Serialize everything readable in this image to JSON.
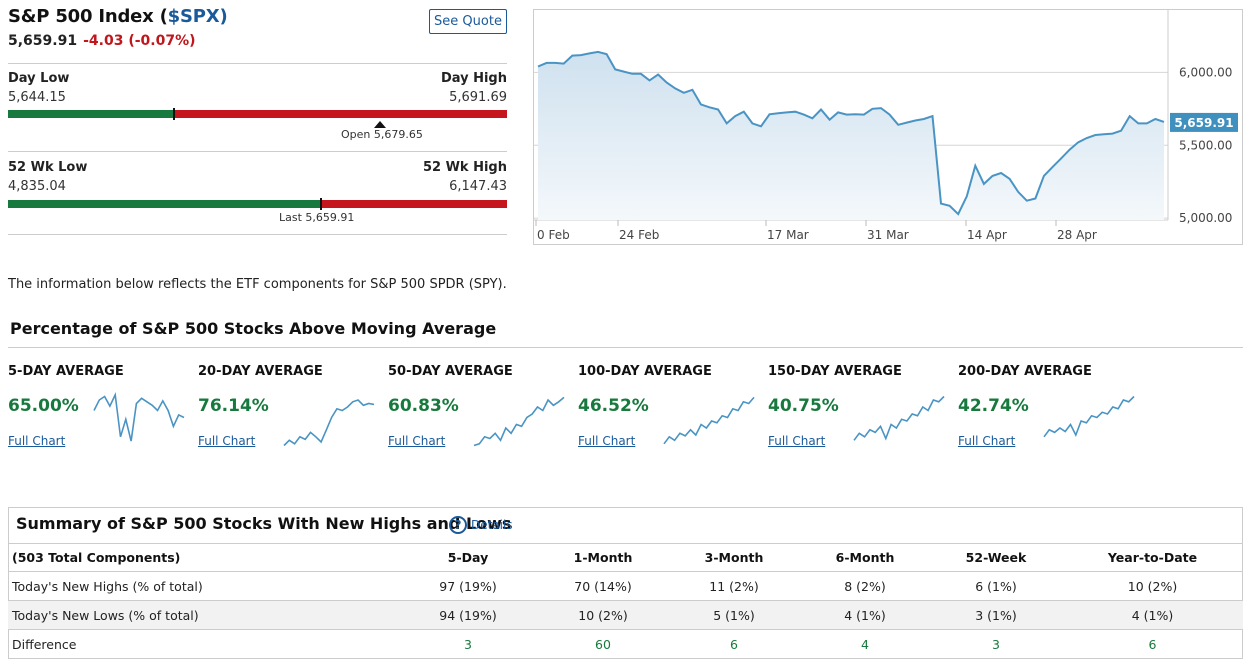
{
  "quote": {
    "name": "S&P 500 Index (",
    "symbol": "$SPX",
    "close_paren": ")",
    "price": "5,659.91",
    "change": "-4.03 (-0.07%)",
    "see_quote": "See Quote"
  },
  "day_range": {
    "low_label": "Day Low",
    "low_value": "5,644.15",
    "high_label": "Day High",
    "high_value": "5,691.69",
    "open_label": "Open 5,679.65",
    "last_fraction": 0.333,
    "open_fraction": 0.746
  },
  "wk52_range": {
    "low_label": "52 Wk Low",
    "low_value": "4,835.04",
    "high_label": "52 Wk High",
    "high_value": "6,147.43",
    "last_label": "Last 5,659.91",
    "last_fraction": 0.628
  },
  "price_chart": {
    "type": "area",
    "x_ticks": [
      "0 Feb",
      "24 Feb",
      "17 Mar",
      "31 Mar",
      "14 Apr",
      "28 Apr"
    ],
    "y_ticks": [
      "6,000.00",
      "5,500.00",
      "5,000.00"
    ],
    "ylim": [
      4960,
      6400
    ],
    "last_label": "5,659.91",
    "values": [
      6040,
      6065,
      6065,
      6060,
      6115,
      6118,
      6130,
      6140,
      6125,
      6020,
      6005,
      5990,
      5990,
      5945,
      5985,
      5930,
      5890,
      5860,
      5880,
      5780,
      5760,
      5745,
      5650,
      5700,
      5730,
      5650,
      5630,
      5712,
      5720,
      5725,
      5730,
      5710,
      5685,
      5745,
      5675,
      5725,
      5710,
      5712,
      5710,
      5750,
      5755,
      5710,
      5640,
      5655,
      5670,
      5680,
      5700,
      5100,
      5085,
      5028,
      5150,
      5360,
      5235,
      5290,
      5310,
      5270,
      5180,
      5120,
      5135,
      5290,
      5350,
      5410,
      5470,
      5520,
      5550,
      5570,
      5575,
      5580,
      5600,
      5700,
      5650,
      5650,
      5680,
      5660
    ]
  },
  "info_text": "The information below reflects the ETF components for S&P 500 SPDR (SPY).",
  "ma_section": {
    "title": "Percentage of S&P 500 Stocks Above Moving Average",
    "full_chart_label": "Full Chart",
    "items": [
      {
        "label": "5-DAY AVERAGE",
        "value": "65.00%",
        "spark": [
          60,
          72,
          76,
          65,
          78,
          30,
          50,
          25,
          68,
          74,
          70,
          66,
          60,
          71,
          60,
          42,
          55,
          52
        ]
      },
      {
        "label": "20-DAY AVERAGE",
        "value": "76.14%",
        "spark": [
          20,
          26,
          22,
          30,
          27,
          35,
          30,
          24,
          38,
          52,
          62,
          60,
          64,
          70,
          72,
          66,
          68,
          67
        ]
      },
      {
        "label": "50-DAY AVERAGE",
        "value": "60.83%",
        "spark": [
          20,
          22,
          30,
          28,
          34,
          26,
          40,
          34,
          44,
          42,
          52,
          56,
          64,
          60,
          72,
          66,
          70,
          75
        ]
      },
      {
        "label": "100-DAY AVERAGE",
        "value": "46.52%",
        "spark": [
          22,
          30,
          26,
          34,
          31,
          38,
          32,
          44,
          40,
          48,
          46,
          54,
          52,
          62,
          60,
          70,
          68,
          75
        ]
      },
      {
        "label": "150-DAY AVERAGE",
        "value": "40.75%",
        "spark": [
          26,
          34,
          30,
          38,
          35,
          42,
          28,
          44,
          40,
          50,
          48,
          56,
          54,
          64,
          60,
          72,
          70,
          76
        ]
      },
      {
        "label": "200-DAY AVERAGE",
        "value": "42.74%",
        "spark": [
          30,
          38,
          35,
          40,
          36,
          44,
          32,
          48,
          46,
          54,
          52,
          58,
          56,
          64,
          62,
          72,
          70,
          76
        ]
      }
    ]
  },
  "summary": {
    "title": "Summary of S&P 500 Stocks With New Highs and Lows",
    "details": "Details",
    "columns": [
      "(503 Total Components)",
      "5-Day",
      "1-Month",
      "3-Month",
      "6-Month",
      "52-Week",
      "Year-to-Date"
    ],
    "rows": [
      [
        "Today's New Highs (% of total)",
        "97 (19%)",
        "70 (14%)",
        "11 (2%)",
        "8 (2%)",
        "6 (1%)",
        "10 (2%)"
      ],
      [
        "Today's New Lows (% of total)",
        "94 (19%)",
        "10 (2%)",
        "5 (1%)",
        "4 (1%)",
        "3 (1%)",
        "4 (1%)"
      ],
      [
        "Difference",
        "3",
        "60",
        "6",
        "4",
        "3",
        "6"
      ]
    ]
  },
  "colors": {
    "green": "#17793d",
    "red": "#c6161d",
    "link": "#1a5a9a",
    "line": "#4a94c4"
  }
}
